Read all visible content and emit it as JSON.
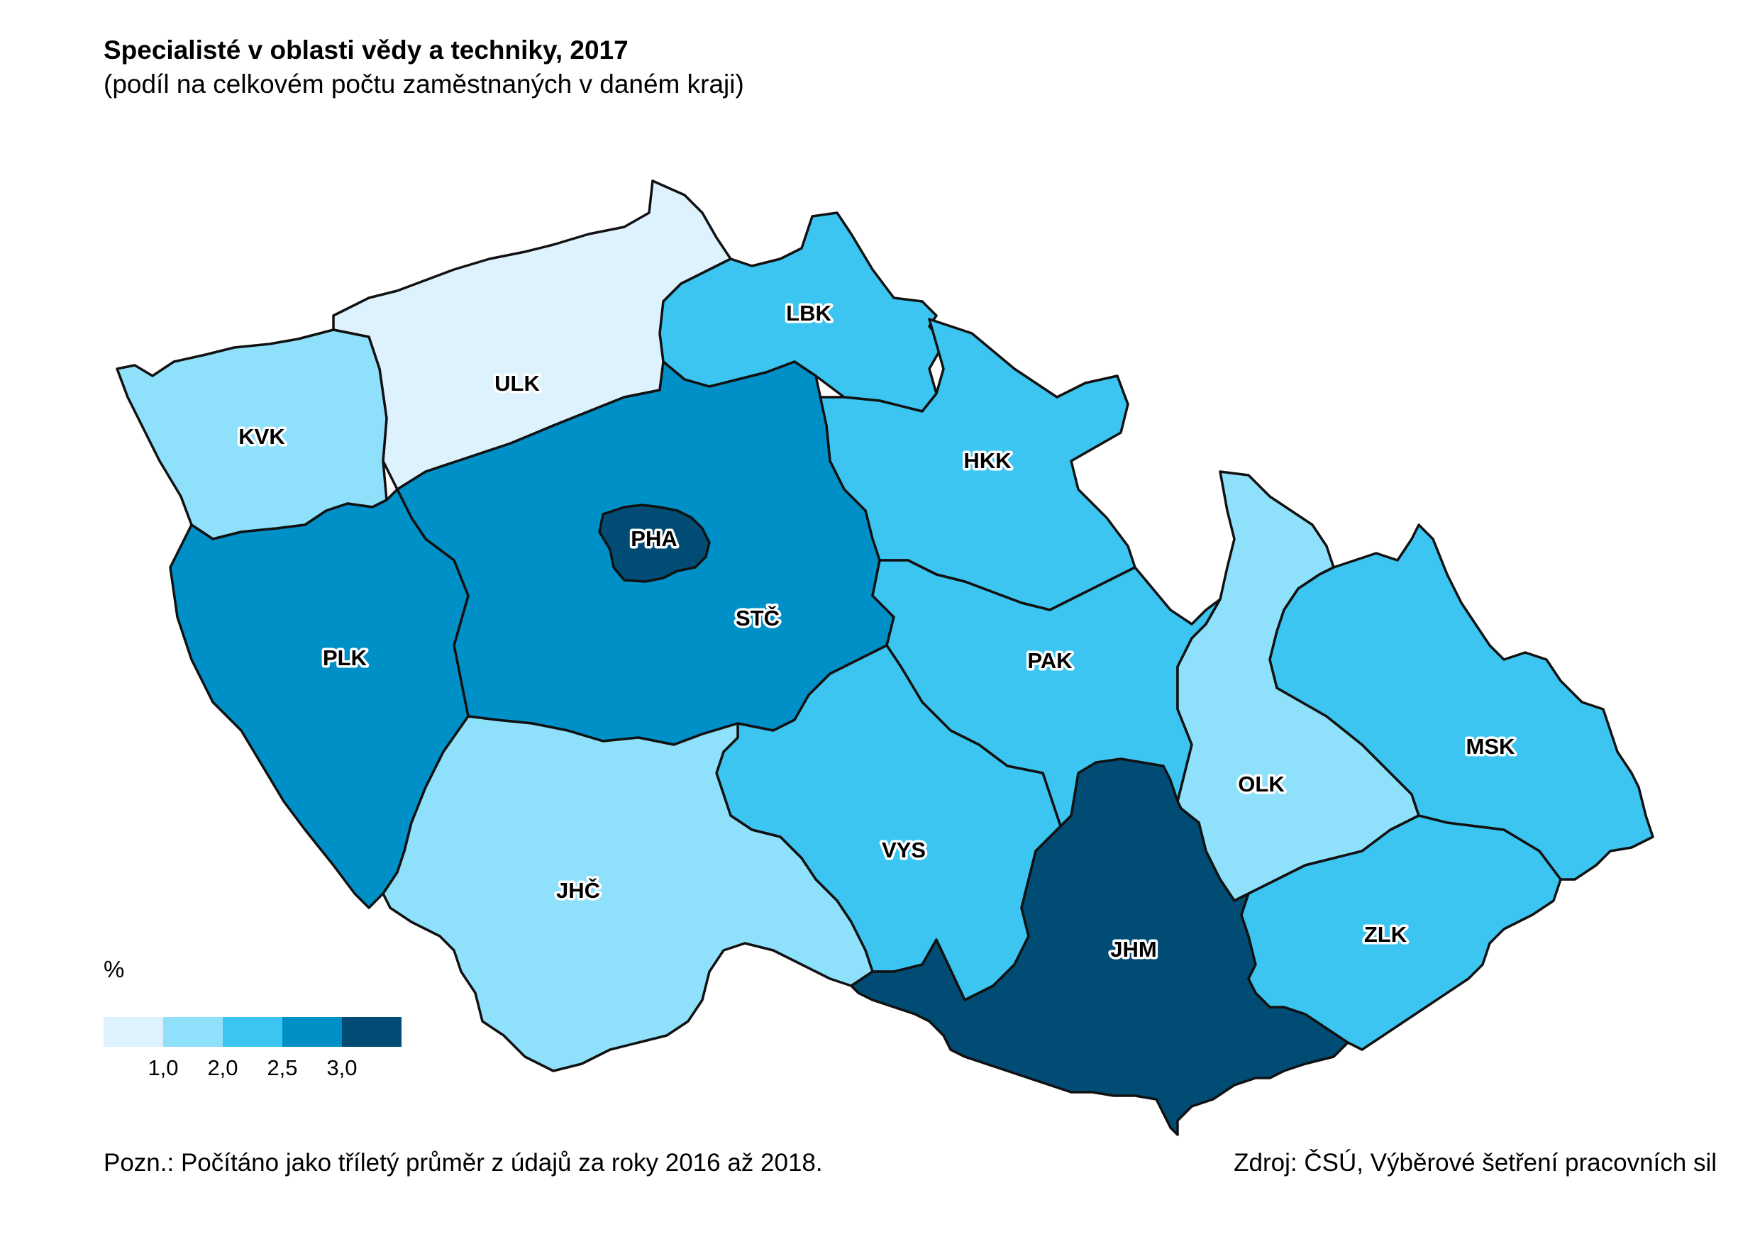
{
  "header": {
    "title": "Specialisté v oblasti vědy a techniky, 2017",
    "subtitle": "(podíl na celkovém počtu zaměstnaných v daném kraji)"
  },
  "legend": {
    "unit": "%",
    "colors": [
      "#ddf2fd",
      "#8fe0fb",
      "#3cc5f1",
      "#0090c8",
      "#004c74"
    ],
    "ticks": [
      "1,0",
      "2,0",
      "2,5",
      "3,0"
    ]
  },
  "regions": [
    {
      "code": "ULK",
      "class": 0
    },
    {
      "code": "LBK",
      "class": 2
    },
    {
      "code": "KVK",
      "class": 1
    },
    {
      "code": "HKK",
      "class": 2
    },
    {
      "code": "PHA",
      "class": 4
    },
    {
      "code": "STČ",
      "class": 3
    },
    {
      "code": "PLK",
      "class": 3
    },
    {
      "code": "PAK",
      "class": 2
    },
    {
      "code": "OLK",
      "class": 1
    },
    {
      "code": "MSK",
      "class": 2
    },
    {
      "code": "VYS",
      "class": 2
    },
    {
      "code": "JHČ",
      "class": 1
    },
    {
      "code": "JHM",
      "class": 4
    },
    {
      "code": "ZLK",
      "class": 2
    }
  ],
  "footer": {
    "note": "Pozn.: Počítáno jako tříletý průměr z údajů za roky 2016 až 2018.",
    "source": "Zdroj: ČSÚ, Výběrové šetření pracovních sil"
  }
}
